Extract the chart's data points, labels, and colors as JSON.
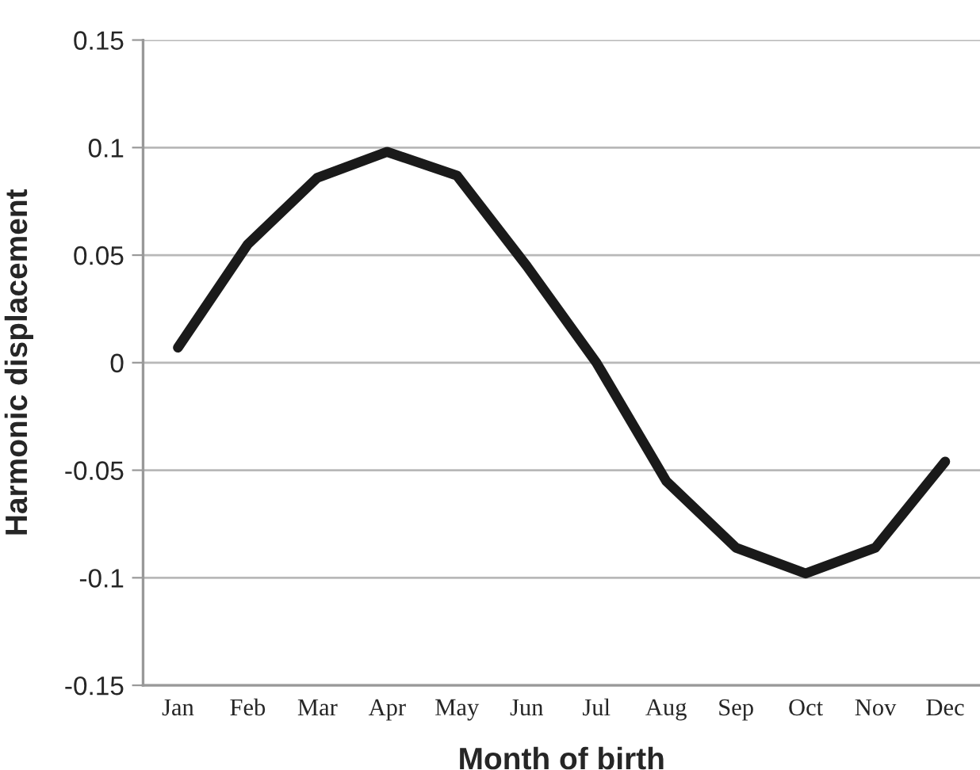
{
  "chart_data": {
    "type": "line",
    "xlabel": "Month of birth",
    "ylabel": "Harmonic displacement",
    "categories": [
      "Jan",
      "Feb",
      "Mar",
      "Apr",
      "May",
      "Jun",
      "Jul",
      "Aug",
      "Sep",
      "Oct",
      "Nov",
      "Dec"
    ],
    "series": [
      {
        "color": "#1a1a1a",
        "values": [
          0.007,
          0.055,
          0.086,
          0.098,
          0.087,
          0.045,
          0.0,
          -0.055,
          -0.086,
          -0.098,
          -0.086,
          -0.046
        ]
      }
    ],
    "ylim": [
      -0.15,
      0.15
    ],
    "yticks": [
      -0.15,
      -0.1,
      -0.05,
      0,
      0.05,
      0.1,
      0.15
    ],
    "grid": "y",
    "marker": "none",
    "line_style": "solid"
  }
}
